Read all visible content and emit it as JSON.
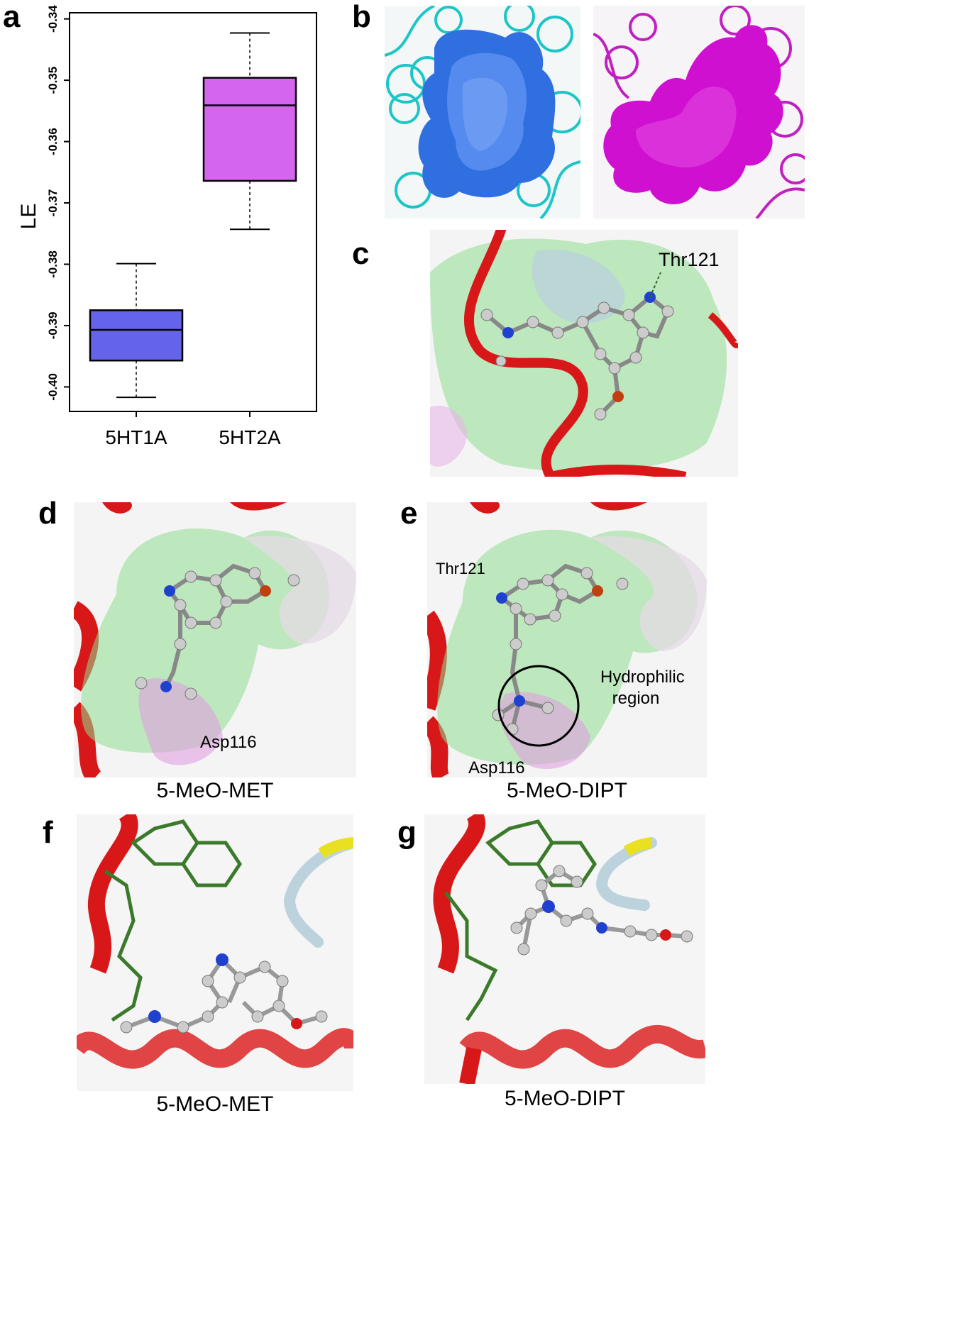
{
  "panels": {
    "a": "a",
    "b": "b",
    "c": "c",
    "d": "d",
    "e": "e",
    "f": "f",
    "g": "g"
  },
  "chart_data": {
    "type": "box",
    "title": "",
    "ylabel": "LE",
    "xlabel": "",
    "categories": [
      "5HT1A",
      "5HT2A"
    ],
    "ylim": [
      -0.404,
      -0.339
    ],
    "yticks": [
      -0.34,
      -0.35,
      -0.36,
      -0.37,
      -0.38,
      -0.39,
      -0.4
    ],
    "ytick_labels": [
      "-0.34",
      "-0.35",
      "-0.36",
      "-0.37",
      "-0.38",
      "-0.39",
      "-0.40"
    ],
    "boxes": [
      {
        "category": "5HT1A",
        "whisker_low": -0.4017,
        "q1": -0.3957,
        "median": -0.3907,
        "q3": -0.3875,
        "whisker_high": -0.3799,
        "color": "#6464ea"
      },
      {
        "category": "5HT2A",
        "whisker_low": -0.3743,
        "q1": -0.3664,
        "median": -0.3541,
        "q3": -0.3496,
        "whisker_high": -0.3423,
        "color": "#d466ee"
      }
    ],
    "grid": false,
    "legend": "none"
  },
  "labels": {
    "thr121_c": "Thr121",
    "asp116_d": "Asp116",
    "thr121_e": "Thr121",
    "hydrophilic": "Hydrophilic region",
    "asp116_e": "Asp116"
  },
  "captions": {
    "d": "5-MeO-MET",
    "e": "5-MeO-DIPT",
    "f": "5-MeO-MET",
    "g": "5-MeO-DIPT"
  },
  "colors": {
    "surface_blue": "#2f6fe0",
    "surface_magenta": "#d010d0",
    "ribbon_red": "#d81818",
    "cyan_coil": "#1cc6c6",
    "surface_green": "#8fdc8f",
    "surface_pink": "#e7b8e7"
  }
}
